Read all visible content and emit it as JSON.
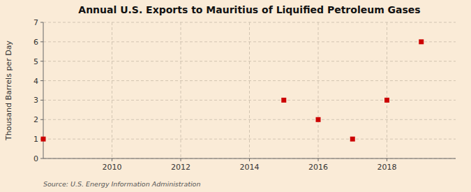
{
  "chart_data": {
    "type": "scatter",
    "title": "Annual U.S. Exports to Mauritius of Liquified Petroleum Gases",
    "ylabel": "Thousand Barrels per Day",
    "annotations": [
      "Source: U.S. Energy Information Administration"
    ],
    "x": [
      2008,
      2015,
      2016,
      2017,
      2018,
      2019
    ],
    "values": [
      1,
      3,
      2,
      1,
      3,
      6
    ],
    "color": "#cc0000",
    "marker": "square",
    "xlim": [
      2008.0,
      2020.0
    ],
    "ylim": [
      0,
      7
    ],
    "xticks": [
      2010,
      2012,
      2014,
      2016,
      2018
    ],
    "yticks": [
      0,
      1,
      2,
      3,
      4,
      5,
      6,
      7
    ],
    "grid": true
  }
}
